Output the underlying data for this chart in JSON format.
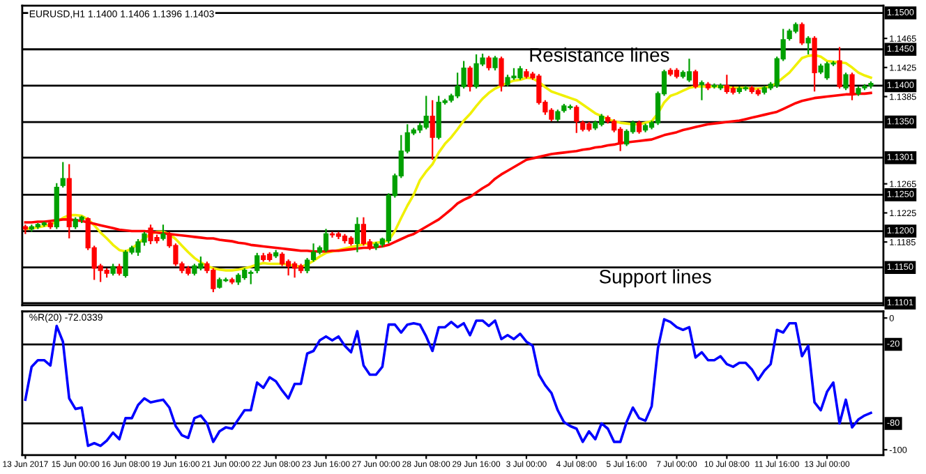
{
  "chart_data": [
    {
      "type": "candlestick",
      "title": "EURUSD,H1 1.1400 1.1406 1.1396 1.1403",
      "annotations": [
        "Resistance lines",
        "Support lines"
      ],
      "tick_labels": "y",
      "colors": [
        "#ff0000",
        "#00a000",
        "#00a000",
        "#00a000",
        "#ff0000",
        "#00a000",
        "#00a000",
        "#ff0000",
        "#00a000",
        "#00a000",
        "#ff0000",
        "#ff0000",
        "#ff0000",
        "#ff0000",
        "#00a000",
        "#ff0000",
        "#00a000",
        "#00a000",
        "#00a000",
        "#00a000",
        "#ff0000",
        "#ff0000",
        "#00a000",
        "#ff0000",
        "#ff0000",
        "#ff0000",
        "#ff0000",
        "#00a000",
        "#00a000",
        "#ff0000",
        "#ff0000",
        "#00a000",
        "#00a000",
        "#ff0000",
        "#00a000",
        "#00a000",
        "#00a000",
        "#00a000",
        "#ff0000",
        "#ff0000",
        "#00a000",
        "#ff0000",
        "#ff0000",
        "#ff0000",
        "#ff0000",
        "#00a000",
        "#00a000",
        "#00a000",
        "#00a000",
        "#ff0000",
        "#ff0000",
        "#ff0000",
        "#ff0000",
        "#00a000",
        "#ff0000",
        "#ff0000",
        "#00a000",
        "#00a000",
        "#00a000",
        "#00a000",
        "#00a000",
        "#00a000",
        "#00a000",
        "#00a000",
        "#00a000",
        "#ff0000",
        "#00a000",
        "#00a000",
        "#00a000",
        "#00a000",
        "#00a000",
        "#ff0000",
        "#00a000",
        "#00a000",
        "#ff0000",
        "#00a000",
        "#ff0000",
        "#00a000",
        "#00a000",
        "#00a000",
        "#ff0000",
        "#ff0000",
        "#ff0000",
        "#ff0000",
        "#ff0000",
        "#00a000",
        "#00a000",
        "#00a000",
        "#ff0000",
        "#ff0000",
        "#ff0000",
        "#00a000",
        "#00a000",
        "#ff0000",
        "#ff0000",
        "#ff0000",
        "#00a000",
        "#00a000",
        "#ff0000",
        "#00a000",
        "#00a000",
        "#00a000",
        "#00a000",
        "#ff0000",
        "#ff0000",
        "#00a000",
        "#00a000",
        "#ff0000",
        "#00a000",
        "#ff0000",
        "#00a000",
        "#00a000",
        "#ff0000",
        "#ff0000",
        "#00a000",
        "#00a000",
        "#ff0000",
        "#ff0000",
        "#00a000",
        "#00a000",
        "#00a000",
        "#00a000",
        "#00a000",
        "#00a000",
        "#ff0000",
        "#00a000",
        "#ff0000",
        "#00a000",
        "#00a000",
        "#00a000",
        "#ff0000",
        "#00a000",
        "#ff0000",
        "#00a000",
        "#00a000",
        "#00a000"
      ],
      "categories": [
        null,
        null,
        null,
        null,
        null,
        null,
        null,
        null,
        null,
        null,
        null,
        null,
        null,
        null,
        null,
        null,
        null,
        null,
        null,
        null,
        null,
        null,
        null,
        null,
        null,
        null,
        null,
        null,
        null,
        null,
        null,
        null,
        null,
        null,
        null,
        null,
        null,
        null,
        null,
        null,
        null,
        null,
        null,
        null,
        null,
        null,
        null,
        null,
        null,
        null,
        null,
        null,
        null,
        null,
        null,
        null,
        null,
        null,
        null,
        null,
        null,
        null,
        null,
        null,
        null,
        null,
        null,
        null,
        null,
        null,
        null,
        null,
        null,
        null,
        null,
        null,
        null,
        null,
        null,
        null,
        null,
        null,
        null,
        null,
        null,
        null,
        null,
        null,
        null,
        null,
        null,
        null,
        null,
        null,
        null,
        null,
        null,
        null,
        null,
        null,
        null,
        null,
        null,
        null,
        null,
        null,
        null,
        null,
        null,
        null,
        null,
        null,
        null,
        null,
        null,
        null,
        null,
        null,
        null,
        null,
        null,
        null,
        null,
        null,
        null,
        null,
        null,
        null,
        null,
        null,
        null,
        null,
        null,
        null,
        null,
        null
      ],
      "ohlc": [
        [
          1.1206,
          1.1209,
          1.1196,
          1.1203
        ],
        [
          1.1203,
          1.1209,
          1.1199,
          1.1206
        ],
        [
          1.1206,
          1.1211,
          1.1203,
          1.1209
        ],
        [
          1.1209,
          1.1213,
          1.1206,
          1.1211
        ],
        [
          1.1211,
          1.1214,
          1.1203,
          1.1206
        ],
        [
          1.1206,
          1.1266,
          1.1203,
          1.126
        ],
        [
          1.1263,
          1.1295,
          1.126,
          1.1272
        ],
        [
          1.1272,
          1.1292,
          1.119,
          1.1206
        ],
        [
          1.1206,
          1.1219,
          1.1203,
          1.1216
        ],
        [
          1.1216,
          1.1221,
          1.1211,
          1.1219
        ],
        [
          1.1217,
          1.1219,
          1.1174,
          1.1177
        ],
        [
          1.1177,
          1.118,
          1.1133,
          1.1149
        ],
        [
          1.1152,
          1.1155,
          1.113,
          1.1146
        ],
        [
          1.1146,
          1.1149,
          1.1136,
          1.1142
        ],
        [
          1.1142,
          1.1155,
          1.1139,
          1.1151
        ],
        [
          1.1151,
          1.1155,
          1.1139,
          1.1142
        ],
        [
          1.1139,
          1.1174,
          1.1136,
          1.1171
        ],
        [
          1.1171,
          1.118,
          1.1168,
          1.1177
        ],
        [
          1.1171,
          1.1189,
          1.1166,
          1.1185
        ],
        [
          1.1185,
          1.1199,
          1.118,
          1.1196
        ],
        [
          1.1204,
          1.1209,
          1.1182,
          1.1187
        ],
        [
          1.1191,
          1.1195,
          1.1183,
          1.1187
        ],
        [
          1.119,
          1.1209,
          1.1187,
          1.1196
        ],
        [
          1.1196,
          1.1199,
          1.1177,
          1.118
        ],
        [
          1.118,
          1.1183,
          1.1152,
          1.1155
        ],
        [
          1.1155,
          1.1158,
          1.1142,
          1.1146
        ],
        [
          1.1149,
          1.1152,
          1.1139,
          1.1142
        ],
        [
          1.1142,
          1.1155,
          1.1139,
          1.1152
        ],
        [
          1.1149,
          1.1165,
          1.1146,
          1.1155
        ],
        [
          1.1155,
          1.1158,
          1.1142,
          1.1146
        ],
        [
          1.1146,
          1.1149,
          1.1116,
          1.1121
        ],
        [
          1.1123,
          1.1136,
          1.1121,
          1.1133
        ],
        [
          1.1132,
          1.1136,
          1.113,
          1.1133
        ],
        [
          1.1133,
          1.1136,
          1.1127,
          1.113
        ],
        [
          1.113,
          1.1142,
          1.1126,
          1.1139
        ],
        [
          1.1136,
          1.1149,
          1.1133,
          1.1146
        ],
        [
          1.1142,
          1.1146,
          1.1127,
          1.1143
        ],
        [
          1.1146,
          1.117,
          1.1142,
          1.1166
        ],
        [
          1.1166,
          1.117,
          1.1158,
          1.1161
        ],
        [
          1.1168,
          1.1171,
          1.1158,
          1.1161
        ],
        [
          1.1166,
          1.1174,
          1.1163,
          1.117
        ],
        [
          1.1168,
          1.1171,
          1.1152,
          1.1155
        ],
        [
          1.1158,
          1.1161,
          1.1139,
          1.1152
        ],
        [
          1.1155,
          1.1158,
          1.1136,
          1.1149
        ],
        [
          1.1152,
          1.1155,
          1.1142,
          1.1146
        ],
        [
          1.1146,
          1.1163,
          1.1142,
          1.116
        ],
        [
          1.1161,
          1.1183,
          1.1158,
          1.1171
        ],
        [
          1.1171,
          1.118,
          1.1168,
          1.1177
        ],
        [
          1.1174,
          1.1203,
          1.1171,
          1.1196
        ],
        [
          1.1196,
          1.1199,
          1.1191,
          1.1195
        ],
        [
          1.1196,
          1.1199,
          1.1189,
          1.1193
        ],
        [
          1.1193,
          1.1196,
          1.1183,
          1.1187
        ],
        [
          1.119,
          1.1193,
          1.118,
          1.1183
        ],
        [
          1.1183,
          1.1219,
          1.1171,
          1.1209
        ],
        [
          1.1209,
          1.1219,
          1.118,
          1.1183
        ],
        [
          1.1185,
          1.1189,
          1.1174,
          1.1177
        ],
        [
          1.1178,
          1.1185,
          1.1174,
          1.1182
        ],
        [
          1.1182,
          1.1191,
          1.1178,
          1.1189
        ],
        [
          1.1187,
          1.1252,
          1.1183,
          1.1249
        ],
        [
          1.1249,
          1.1279,
          1.1246,
          1.1276
        ],
        [
          1.1276,
          1.1332,
          1.1273,
          1.131
        ],
        [
          1.131,
          1.1347,
          1.1307,
          1.1335
        ],
        [
          1.1335,
          1.1342,
          1.1332,
          1.1339
        ],
        [
          1.1339,
          1.1349,
          1.1335,
          1.1345
        ],
        [
          1.1343,
          1.1386,
          1.134,
          1.1358
        ],
        [
          1.1358,
          1.138,
          1.1298,
          1.1329
        ],
        [
          1.1329,
          1.1386,
          1.1326,
          1.1377
        ],
        [
          1.1377,
          1.1382,
          1.1374,
          1.1379
        ],
        [
          1.138,
          1.1389,
          1.1377,
          1.1386
        ],
        [
          1.1386,
          1.1418,
          1.1383,
          1.1399
        ],
        [
          1.1399,
          1.1434,
          1.1396,
          1.1424
        ],
        [
          1.1424,
          1.1427,
          1.1392,
          1.1399
        ],
        [
          1.1399,
          1.1443,
          1.1396,
          1.143
        ],
        [
          1.143,
          1.1444,
          1.1427,
          1.1438
        ],
        [
          1.1438,
          1.1441,
          1.1421,
          1.1425
        ],
        [
          1.1425,
          1.1441,
          1.1421,
          1.1438
        ],
        [
          1.1437,
          1.144,
          1.1392,
          1.14
        ],
        [
          1.1402,
          1.1415,
          1.1399,
          1.1411
        ],
        [
          1.1411,
          1.1424,
          1.1408,
          1.1413
        ],
        [
          1.1411,
          1.1427,
          1.1408,
          1.1423
        ],
        [
          1.1419,
          1.1423,
          1.141,
          1.1413
        ],
        [
          1.1416,
          1.1419,
          1.1408,
          1.1411
        ],
        [
          1.1413,
          1.1416,
          1.1374,
          1.1377
        ],
        [
          1.1377,
          1.138,
          1.136,
          1.1364
        ],
        [
          1.1366,
          1.1369,
          1.1351,
          1.1354
        ],
        [
          1.1354,
          1.1367,
          1.1351,
          1.1364
        ],
        [
          1.1366,
          1.1375,
          1.1363,
          1.1372
        ],
        [
          1.137,
          1.1374,
          1.1367,
          1.1371
        ],
        [
          1.137,
          1.1373,
          1.1335,
          1.1351
        ],
        [
          1.1349,
          1.1352,
          1.1337,
          1.134
        ],
        [
          1.1347,
          1.135,
          1.1337,
          1.134
        ],
        [
          1.1342,
          1.1352,
          1.1339,
          1.1349
        ],
        [
          1.1347,
          1.1361,
          1.1344,
          1.1358
        ],
        [
          1.1356,
          1.1359,
          1.1348,
          1.1351
        ],
        [
          1.1351,
          1.1354,
          1.1336,
          1.1339
        ],
        [
          1.134,
          1.1343,
          1.131,
          1.132
        ],
        [
          1.132,
          1.134,
          1.1317,
          1.1337
        ],
        [
          1.1337,
          1.1352,
          1.1334,
          1.1349
        ],
        [
          1.1349,
          1.1352,
          1.1334,
          1.1337
        ],
        [
          1.1339,
          1.1348,
          1.1336,
          1.1345
        ],
        [
          1.1343,
          1.1352,
          1.134,
          1.1349
        ],
        [
          1.1349,
          1.1392,
          1.1346,
          1.1389
        ],
        [
          1.1389,
          1.1422,
          1.1386,
          1.1419
        ],
        [
          1.1421,
          1.1424,
          1.1413,
          1.1416
        ],
        [
          1.1421,
          1.1424,
          1.141,
          1.1413
        ],
        [
          1.1413,
          1.1421,
          1.141,
          1.1418
        ],
        [
          1.1408,
          1.1437,
          1.1405,
          1.1419
        ],
        [
          1.1419,
          1.1422,
          1.1396,
          1.1399
        ],
        [
          1.1402,
          1.1407,
          1.138,
          1.1404
        ],
        [
          1.1402,
          1.1405,
          1.1394,
          1.1397
        ],
        [
          1.1399,
          1.1403,
          1.1396,
          1.14
        ],
        [
          1.1397,
          1.1403,
          1.1394,
          1.14
        ],
        [
          1.14,
          1.1415,
          1.1389,
          1.1392
        ],
        [
          1.1396,
          1.1399,
          1.1388,
          1.1391
        ],
        [
          1.1392,
          1.1399,
          1.1389,
          1.1396
        ],
        [
          1.1396,
          1.14,
          1.1393,
          1.1397
        ],
        [
          1.1397,
          1.14,
          1.1389,
          1.1392
        ],
        [
          1.1393,
          1.1396,
          1.1386,
          1.1389
        ],
        [
          1.1391,
          1.14,
          1.1388,
          1.1397
        ],
        [
          1.1397,
          1.1405,
          1.1394,
          1.1402
        ],
        [
          1.14,
          1.144,
          1.1397,
          1.1437
        ],
        [
          1.1437,
          1.1478,
          1.1434,
          1.1463
        ],
        [
          1.1465,
          1.1478,
          1.1462,
          1.1475
        ],
        [
          1.1475,
          1.1487,
          1.1472,
          1.1484
        ],
        [
          1.1484,
          1.1487,
          1.1456,
          1.1459
        ],
        [
          1.1459,
          1.1468,
          1.1443,
          1.1465
        ],
        [
          1.1465,
          1.1468,
          1.1392,
          1.1418
        ],
        [
          1.1419,
          1.143,
          1.1416,
          1.1427
        ],
        [
          1.1411,
          1.1433,
          1.1408,
          1.143
        ],
        [
          1.143,
          1.1434,
          1.1427,
          1.1431
        ],
        [
          1.1434,
          1.1453,
          1.1396,
          1.1399
        ],
        [
          1.1397,
          1.1418,
          1.1394,
          1.1415
        ],
        [
          1.1415,
          1.1418,
          1.138,
          1.1389
        ],
        [
          1.1389,
          1.1399,
          1.1386,
          1.1396
        ],
        [
          1.1397,
          1.1402,
          1.1394,
          1.1399
        ],
        [
          1.14,
          1.1406,
          1.1396,
          1.1403
        ]
      ],
      "series": [
        {
          "type": "line",
          "color": "#f0f000",
          "values": [
            1.1203,
            1.1204,
            1.1205,
            1.1207,
            1.1209,
            1.1213,
            1.1218,
            1.1222,
            1.1222,
            1.1221,
            1.1216,
            1.1208,
            1.1198,
            1.119,
            1.1181,
            1.1174,
            1.1172,
            1.1176,
            1.1183,
            1.119,
            1.1196,
            1.1199,
            1.1199,
            1.1196,
            1.1189,
            1.118,
            1.1171,
            1.1163,
            1.1157,
            1.1152,
            1.1149,
            1.1147,
            1.1146,
            1.1146,
            1.1147,
            1.1149,
            1.1151,
            1.1154,
            1.1156,
            1.1155,
            1.1155,
            1.1155,
            1.1154,
            1.1152,
            1.1151,
            1.1154,
            1.1159,
            1.1165,
            1.117,
            1.1172,
            1.1174,
            1.1176,
            1.1178,
            1.118,
            1.1182,
            1.1183,
            1.1184,
            1.1185,
            1.1187,
            1.12,
            1.1218,
            1.1235,
            1.125,
            1.127,
            1.1282,
            1.1292,
            1.1308,
            1.132,
            1.1329,
            1.134,
            1.1352,
            1.1361,
            1.1372,
            1.1382,
            1.139,
            1.1396,
            1.14,
            1.1404,
            1.1407,
            1.1408,
            1.1411,
            1.141,
            1.1405,
            1.1398,
            1.1392,
            1.1389,
            1.1386,
            1.1383,
            1.138,
            1.1374,
            1.1368,
            1.1362,
            1.1358,
            1.1354,
            1.1351,
            1.1349,
            1.1348,
            1.1347,
            1.1347,
            1.1349,
            1.1351,
            1.1362,
            1.1377,
            1.1386,
            1.1389,
            1.1393,
            1.1397,
            1.1399,
            1.1399,
            1.1399,
            1.1399,
            1.1399,
            1.1398,
            1.1397,
            1.1397,
            1.1397,
            1.1396,
            1.1396,
            1.1397,
            1.1399,
            1.1404,
            1.1411,
            1.1418,
            1.1428,
            1.1438,
            1.1441,
            1.1442,
            1.144,
            1.1434,
            1.1433,
            1.1432,
            1.1431,
            1.1425,
            1.1418,
            1.1414,
            1.1411
          ]
        },
        {
          "type": "line",
          "color": "#ff0000",
          "values": [
            1.1212,
            1.1212,
            1.1213,
            1.1213,
            1.1214,
            1.1215,
            1.1216,
            1.1216,
            1.1215,
            1.1214,
            1.1212,
            1.121,
            1.1208,
            1.1206,
            1.1204,
            1.1202,
            1.1201,
            1.12,
            1.12,
            1.12,
            1.1199,
            1.1198,
            1.1197,
            1.1196,
            1.1195,
            1.1194,
            1.1193,
            1.1192,
            1.1191,
            1.119,
            1.119,
            1.1188,
            1.1187,
            1.1186,
            1.1184,
            1.1183,
            1.1181,
            1.118,
            1.1179,
            1.1178,
            1.1177,
            1.1176,
            1.1175,
            1.1174,
            1.1173,
            1.1173,
            1.1172,
            1.1172,
            1.1172,
            1.1173,
            1.1173,
            1.1174,
            1.1175,
            1.1176,
            1.1177,
            1.1177,
            1.1178,
            1.1179,
            1.1181,
            1.1185,
            1.1189,
            1.1193,
            1.1196,
            1.1201,
            1.1206,
            1.1211,
            1.1216,
            1.1223,
            1.123,
            1.1238,
            1.1243,
            1.1247,
            1.1253,
            1.1259,
            1.1264,
            1.1272,
            1.1278,
            1.1283,
            1.1288,
            1.1293,
            1.1298,
            1.13,
            1.1302,
            1.1304,
            1.1306,
            1.1307,
            1.1308,
            1.1309,
            1.131,
            1.1312,
            1.1313,
            1.1315,
            1.1316,
            1.1318,
            1.1319,
            1.1321,
            1.1322,
            1.1323,
            1.1324,
            1.1325,
            1.1326,
            1.1329,
            1.1332,
            1.1334,
            1.1336,
            1.1339,
            1.1341,
            1.1343,
            1.1345,
            1.1347,
            1.1348,
            1.1349,
            1.135,
            1.1351,
            1.1352,
            1.1354,
            1.1356,
            1.1358,
            1.136,
            1.1362,
            1.1364,
            1.1368,
            1.1372,
            1.1376,
            1.1379,
            1.1381,
            1.1383,
            1.1384,
            1.1385,
            1.1386,
            1.1387,
            1.1388,
            1.1388,
            1.1389,
            1.1389,
            1.139
          ]
        }
      ],
      "ylim": [
        1.1098,
        1.151
      ],
      "yticks": [
        1.1465,
        1.1425,
        1.1385,
        1.1265,
        1.1225,
        1.1185
      ],
      "ref_lines": [
        {
          "axis": "y",
          "value": 1.15,
          "label": "1.1500",
          "color": "#000000"
        },
        {
          "axis": "y",
          "value": 1.145,
          "label": "1.1450",
          "color": "#000000"
        },
        {
          "axis": "y",
          "value": 1.14,
          "label": "1.1400",
          "color": "#000000"
        },
        {
          "axis": "y",
          "value": 1.135,
          "label": "1.1350",
          "color": "#000000"
        },
        {
          "axis": "y",
          "value": 1.1301,
          "label": "1.1301",
          "color": "#000000"
        },
        {
          "axis": "y",
          "value": 1.125,
          "label": "1.1250",
          "color": "#000000"
        },
        {
          "axis": "y",
          "value": 1.12,
          "label": "1.1200",
          "color": "#000000"
        },
        {
          "axis": "y",
          "value": 1.115,
          "label": "1.1150",
          "color": "#000000"
        },
        {
          "axis": "y",
          "value": 1.1101,
          "label": "1.1101",
          "color": "#000000"
        }
      ]
    },
    {
      "type": "line",
      "title": "%R(20) -72.0339",
      "categories": [
        "13 Jun 2017",
        null,
        null,
        null,
        null,
        null,
        null,
        null,
        "15 Jun 00:00",
        null,
        null,
        null,
        null,
        null,
        null,
        null,
        "16 Jun 08:00",
        null,
        null,
        null,
        null,
        null,
        null,
        null,
        "19 Jun 16:00",
        null,
        null,
        null,
        null,
        null,
        null,
        null,
        "21 Jun 00:00",
        null,
        null,
        null,
        null,
        null,
        null,
        null,
        "22 Jun 08:00",
        null,
        null,
        null,
        null,
        null,
        null,
        null,
        "23 Jun 16:00",
        null,
        null,
        null,
        null,
        null,
        null,
        null,
        "27 Jun 00:00",
        null,
        null,
        null,
        null,
        null,
        null,
        null,
        "28 Jun 08:00",
        null,
        null,
        null,
        null,
        null,
        null,
        null,
        "29 Jun 16:00",
        null,
        null,
        null,
        null,
        null,
        null,
        null,
        "3 Jul 00:00",
        null,
        null,
        null,
        null,
        null,
        null,
        null,
        "4 Jul 08:00",
        null,
        null,
        null,
        null,
        null,
        null,
        null,
        "5 Jul 16:00",
        null,
        null,
        null,
        null,
        null,
        null,
        null,
        "7 Jul 00:00",
        null,
        null,
        null,
        null,
        null,
        null,
        null,
        "10 Jul 08:00",
        null,
        null,
        null,
        null,
        null,
        null,
        null,
        "11 Jul 16:00",
        null,
        null,
        null,
        null,
        null,
        null,
        null,
        "13 Jul 00:00",
        null,
        null,
        null,
        null,
        null,
        null,
        null
      ],
      "series": [
        {
          "color": "#0000ff",
          "values": [
            -62,
            -37,
            -32,
            -32,
            -36,
            -6,
            -18,
            -61,
            -69,
            -68,
            -97,
            -95,
            -97,
            -93,
            -87,
            -92,
            -76,
            -76,
            -66,
            -61,
            -64,
            -63,
            -62,
            -68,
            -82,
            -89,
            -91,
            -76,
            -74,
            -80,
            -94,
            -86,
            -83,
            -84,
            -77,
            -70,
            -70,
            -49,
            -53,
            -45,
            -48,
            -55,
            -61,
            -50,
            -50,
            -27,
            -25,
            -17,
            -14,
            -17,
            -14,
            -21,
            -26,
            -10,
            -36,
            -43,
            -43,
            -37,
            -5,
            -5,
            -11,
            -5,
            -4,
            -5,
            -14,
            -25,
            -7,
            -7,
            -3,
            -7,
            -4,
            -13,
            -2,
            -2,
            -6,
            -2,
            -16,
            -13,
            -16,
            -12,
            -18,
            -21,
            -43,
            -51,
            -57,
            -70,
            -79,
            -82,
            -84,
            -94,
            -86,
            -92,
            -80,
            -84,
            -94,
            -94,
            -79,
            -68,
            -76,
            -78,
            -67,
            -23,
            -1,
            -3,
            -7,
            -9,
            -7,
            -30,
            -26,
            -32,
            -32,
            -29,
            -35,
            -37,
            -34,
            -34,
            -39,
            -47,
            -40,
            -35,
            -9,
            -11,
            -4,
            -4,
            -29,
            -21,
            -64,
            -70,
            -56,
            -49,
            -80,
            -62,
            -83,
            -77,
            -74,
            -72
          ]
        }
      ],
      "ylim": [
        -104,
        5
      ],
      "yticks": [
        0,
        -100
      ],
      "ref_lines": [
        {
          "axis": "y",
          "value": -20,
          "label": "-20",
          "color": "#000000"
        },
        {
          "axis": "y",
          "value": -80,
          "label": "-80",
          "color": "#000000"
        }
      ]
    }
  ]
}
